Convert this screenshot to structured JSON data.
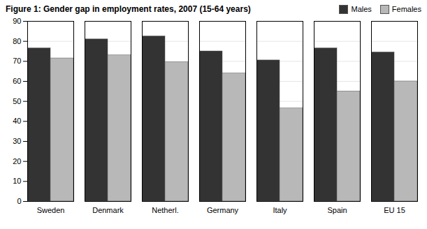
{
  "chart_data": {
    "type": "bar",
    "title": "Figure 1: Gender gap in employment rates, 2007 (15-64 years)",
    "categories": [
      "Sweden",
      "Denmark",
      "Netherl.",
      "Germany",
      "Italy",
      "Spain",
      "EU 15"
    ],
    "series": [
      {
        "name": "Males",
        "color": "#333333",
        "values": [
          76.5,
          81.0,
          82.5,
          75.0,
          70.5,
          76.5,
          74.5
        ]
      },
      {
        "name": "Females",
        "color": "#b8b8b8",
        "values": [
          71.5,
          73.0,
          69.5,
          64.0,
          46.5,
          55.0,
          60.0
        ]
      }
    ],
    "ylim": [
      0,
      90
    ],
    "yticks": [
      0,
      10,
      20,
      30,
      40,
      50,
      60,
      70,
      80,
      90
    ],
    "grid": true,
    "legend": "upper right"
  }
}
